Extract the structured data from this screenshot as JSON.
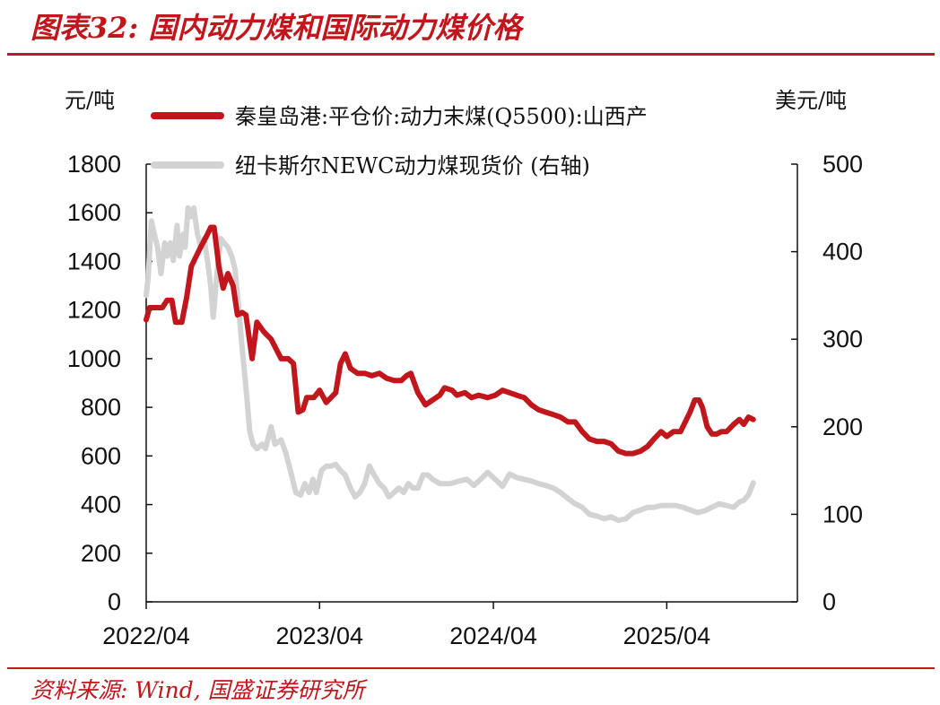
{
  "figure": {
    "title": "图表32: 国内动力煤和国际动力煤价格",
    "source": "资料来源: Wind, 国盛证券研究所",
    "left_unit": "元/吨",
    "right_unit": "美元/吨"
  },
  "colors": {
    "accent": "#c0161c",
    "series_red": "#c0161c",
    "series_gray": "#d3d3d3",
    "axis": "#111111"
  },
  "chart_data": {
    "type": "line",
    "x_ticks": [
      "2022/04",
      "2023/04",
      "2024/04",
      "2025/04"
    ],
    "x_range": [
      "2022/04",
      "2026/01"
    ],
    "y_left": {
      "range": [
        0,
        1800
      ],
      "ticks": [
        "0",
        "200",
        "400",
        "600",
        "800",
        "1000",
        "1200",
        "1400",
        "1600",
        "1800"
      ]
    },
    "y_right": {
      "range": [
        0,
        500
      ],
      "ticks": [
        "0",
        "100",
        "200",
        "300",
        "400",
        "500"
      ]
    },
    "grid": false,
    "legend_position": "top",
    "series": [
      {
        "name": "秦皇岛港:平仓价:动力末煤(Q5500):山西产",
        "axis": "left",
        "color": "#c0161c",
        "points": [
          [
            "2022-04-01",
            1160
          ],
          [
            "2022-04-08",
            1210
          ],
          [
            "2022-04-20",
            1210
          ],
          [
            "2022-05-05",
            1210
          ],
          [
            "2022-05-15",
            1240
          ],
          [
            "2022-05-25",
            1240
          ],
          [
            "2022-06-02",
            1150
          ],
          [
            "2022-06-15",
            1150
          ],
          [
            "2022-06-25",
            1250
          ],
          [
            "2022-07-05",
            1380
          ],
          [
            "2022-07-15",
            1420
          ],
          [
            "2022-07-25",
            1460
          ],
          [
            "2022-08-05",
            1500
          ],
          [
            "2022-08-15",
            1540
          ],
          [
            "2022-08-22",
            1540
          ],
          [
            "2022-09-01",
            1380
          ],
          [
            "2022-09-10",
            1290
          ],
          [
            "2022-09-20",
            1350
          ],
          [
            "2022-10-01",
            1300
          ],
          [
            "2022-10-10",
            1180
          ],
          [
            "2022-10-20",
            1190
          ],
          [
            "2022-10-28",
            1180
          ],
          [
            "2022-11-10",
            1000
          ],
          [
            "2022-11-20",
            1150
          ],
          [
            "2022-12-05",
            1110
          ],
          [
            "2022-12-20",
            1080
          ],
          [
            "2023-01-10",
            1000
          ],
          [
            "2023-01-25",
            1000
          ],
          [
            "2023-02-05",
            980
          ],
          [
            "2023-02-15",
            780
          ],
          [
            "2023-02-25",
            790
          ],
          [
            "2023-03-05",
            840
          ],
          [
            "2023-03-20",
            840
          ],
          [
            "2023-04-01",
            870
          ],
          [
            "2023-04-15",
            820
          ],
          [
            "2023-04-25",
            840
          ],
          [
            "2023-05-05",
            860
          ],
          [
            "2023-05-15",
            980
          ],
          [
            "2023-05-25",
            1020
          ],
          [
            "2023-06-05",
            960
          ],
          [
            "2023-06-20",
            940
          ],
          [
            "2023-07-05",
            940
          ],
          [
            "2023-07-20",
            930
          ],
          [
            "2023-08-05",
            940
          ],
          [
            "2023-08-20",
            920
          ],
          [
            "2023-09-05",
            910
          ],
          [
            "2023-09-20",
            910
          ],
          [
            "2023-10-01",
            930
          ],
          [
            "2023-10-10",
            940
          ],
          [
            "2023-10-25",
            860
          ],
          [
            "2023-11-10",
            810
          ],
          [
            "2023-11-25",
            830
          ],
          [
            "2023-12-10",
            850
          ],
          [
            "2023-12-20",
            880
          ],
          [
            "2024-01-05",
            870
          ],
          [
            "2024-01-15",
            850
          ],
          [
            "2024-02-01",
            860
          ],
          [
            "2024-02-15",
            840
          ],
          [
            "2024-03-01",
            850
          ],
          [
            "2024-03-20",
            840
          ],
          [
            "2024-04-05",
            850
          ],
          [
            "2024-04-20",
            870
          ],
          [
            "2024-05-05",
            860
          ],
          [
            "2024-05-20",
            850
          ],
          [
            "2024-06-05",
            840
          ],
          [
            "2024-06-20",
            810
          ],
          [
            "2024-07-05",
            790
          ],
          [
            "2024-07-20",
            780
          ],
          [
            "2024-08-05",
            770
          ],
          [
            "2024-08-20",
            760
          ],
          [
            "2024-09-05",
            740
          ],
          [
            "2024-09-20",
            740
          ],
          [
            "2024-10-05",
            700
          ],
          [
            "2024-10-20",
            670
          ],
          [
            "2024-11-05",
            660
          ],
          [
            "2024-11-20",
            660
          ],
          [
            "2024-12-05",
            650
          ],
          [
            "2024-12-20",
            620
          ],
          [
            "2025-01-05",
            610
          ],
          [
            "2025-01-20",
            610
          ],
          [
            "2025-02-05",
            620
          ],
          [
            "2025-02-20",
            640
          ],
          [
            "2025-03-05",
            670
          ],
          [
            "2025-03-20",
            700
          ],
          [
            "2025-04-01",
            680
          ],
          [
            "2025-04-15",
            700
          ],
          [
            "2025-04-30",
            700
          ],
          [
            "2025-05-10",
            740
          ],
          [
            "2025-05-20",
            780
          ],
          [
            "2025-05-30",
            830
          ],
          [
            "2025-06-08",
            830
          ],
          [
            "2025-06-15",
            800
          ],
          [
            "2025-06-25",
            720
          ],
          [
            "2025-07-05",
            690
          ],
          [
            "2025-07-15",
            690
          ],
          [
            "2025-07-25",
            700
          ],
          [
            "2025-08-05",
            700
          ],
          [
            "2025-08-20",
            730
          ],
          [
            "2025-09-01",
            750
          ],
          [
            "2025-09-10",
            730
          ],
          [
            "2025-09-20",
            760
          ],
          [
            "2025-09-30",
            750
          ]
        ]
      },
      {
        "name": "纽卡斯尔NEWC动力煤现货价 (右轴)",
        "axis": "right",
        "color": "#d3d3d3",
        "points": [
          [
            "2022-04-01",
            350
          ],
          [
            "2022-04-05",
            370
          ],
          [
            "2022-04-12",
            435
          ],
          [
            "2022-04-18",
            420
          ],
          [
            "2022-04-25",
            405
          ],
          [
            "2022-05-02",
            375
          ],
          [
            "2022-05-10",
            410
          ],
          [
            "2022-05-15",
            395
          ],
          [
            "2022-05-22",
            410
          ],
          [
            "2022-05-28",
            390
          ],
          [
            "2022-06-05",
            430
          ],
          [
            "2022-06-10",
            395
          ],
          [
            "2022-06-18",
            420
          ],
          [
            "2022-06-22",
            405
          ],
          [
            "2022-06-28",
            450
          ],
          [
            "2022-07-05",
            440
          ],
          [
            "2022-07-10",
            450
          ],
          [
            "2022-07-18",
            420
          ],
          [
            "2022-07-25",
            405
          ],
          [
            "2022-08-01",
            415
          ],
          [
            "2022-08-08",
            390
          ],
          [
            "2022-08-15",
            360
          ],
          [
            "2022-08-20",
            325
          ],
          [
            "2022-08-28",
            375
          ],
          [
            "2022-09-05",
            415
          ],
          [
            "2022-09-12",
            410
          ],
          [
            "2022-09-20",
            405
          ],
          [
            "2022-09-28",
            395
          ],
          [
            "2022-10-05",
            380
          ],
          [
            "2022-10-12",
            340
          ],
          [
            "2022-10-20",
            290
          ],
          [
            "2022-10-28",
            245
          ],
          [
            "2022-11-05",
            195
          ],
          [
            "2022-11-12",
            180
          ],
          [
            "2022-11-20",
            175
          ],
          [
            "2022-12-01",
            180
          ],
          [
            "2022-12-08",
            175
          ],
          [
            "2022-12-20",
            200
          ],
          [
            "2022-12-28",
            180
          ],
          [
            "2023-01-10",
            185
          ],
          [
            "2023-01-20",
            170
          ],
          [
            "2023-02-01",
            145
          ],
          [
            "2023-02-10",
            125
          ],
          [
            "2023-02-20",
            122
          ],
          [
            "2023-03-01",
            135
          ],
          [
            "2023-03-10",
            125
          ],
          [
            "2023-03-18",
            140
          ],
          [
            "2023-03-25",
            125
          ],
          [
            "2023-04-05",
            150
          ],
          [
            "2023-04-15",
            155
          ],
          [
            "2023-04-25",
            155
          ],
          [
            "2023-05-05",
            157
          ],
          [
            "2023-05-15",
            150
          ],
          [
            "2023-05-25",
            145
          ],
          [
            "2023-06-05",
            130
          ],
          [
            "2023-06-15",
            120
          ],
          [
            "2023-06-25",
            125
          ],
          [
            "2023-07-05",
            135
          ],
          [
            "2023-07-15",
            155
          ],
          [
            "2023-07-25",
            145
          ],
          [
            "2023-08-05",
            135
          ],
          [
            "2023-08-15",
            130
          ],
          [
            "2023-08-25",
            120
          ],
          [
            "2023-09-05",
            125
          ],
          [
            "2023-09-15",
            130
          ],
          [
            "2023-09-25",
            125
          ],
          [
            "2023-10-05",
            135
          ],
          [
            "2023-10-15",
            130
          ],
          [
            "2023-10-25",
            130
          ],
          [
            "2023-11-05",
            145
          ],
          [
            "2023-11-15",
            145
          ],
          [
            "2023-11-25",
            140
          ],
          [
            "2023-12-10",
            135
          ],
          [
            "2024-01-01",
            135
          ],
          [
            "2024-01-20",
            138
          ],
          [
            "2024-02-05",
            140
          ],
          [
            "2024-02-20",
            133
          ],
          [
            "2024-03-05",
            140
          ],
          [
            "2024-03-20",
            148
          ],
          [
            "2024-04-05",
            140
          ],
          [
            "2024-04-20",
            132
          ],
          [
            "2024-05-05",
            146
          ],
          [
            "2024-05-20",
            142
          ],
          [
            "2024-06-05",
            140
          ],
          [
            "2024-06-20",
            138
          ],
          [
            "2024-07-05",
            135
          ],
          [
            "2024-07-20",
            133
          ],
          [
            "2024-08-05",
            130
          ],
          [
            "2024-08-20",
            125
          ],
          [
            "2024-09-05",
            118
          ],
          [
            "2024-09-20",
            112
          ],
          [
            "2024-10-05",
            108
          ],
          [
            "2024-10-20",
            100
          ],
          [
            "2024-11-05",
            98
          ],
          [
            "2024-11-20",
            95
          ],
          [
            "2024-12-05",
            97
          ],
          [
            "2024-12-20",
            93
          ],
          [
            "2025-01-05",
            95
          ],
          [
            "2025-01-20",
            102
          ],
          [
            "2025-02-05",
            105
          ],
          [
            "2025-02-20",
            108
          ],
          [
            "2025-03-05",
            108
          ],
          [
            "2025-03-20",
            110
          ],
          [
            "2025-04-05",
            110
          ],
          [
            "2025-04-20",
            110
          ],
          [
            "2025-05-05",
            108
          ],
          [
            "2025-05-20",
            105
          ],
          [
            "2025-06-05",
            102
          ],
          [
            "2025-06-20",
            104
          ],
          [
            "2025-07-05",
            108
          ],
          [
            "2025-07-20",
            112
          ],
          [
            "2025-08-05",
            110
          ],
          [
            "2025-08-20",
            108
          ],
          [
            "2025-09-01",
            114
          ],
          [
            "2025-09-10",
            116
          ],
          [
            "2025-09-20",
            122
          ],
          [
            "2025-09-30",
            136
          ]
        ]
      }
    ]
  }
}
